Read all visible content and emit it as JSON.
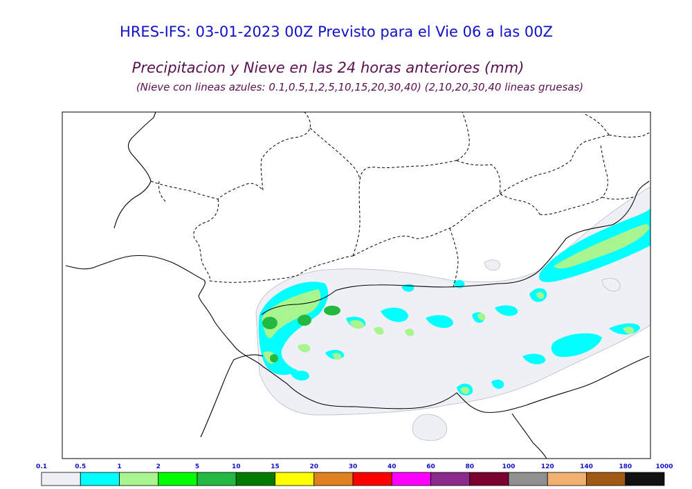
{
  "header": {
    "title": "HRES-IFS: 03-01-2023 00Z Previsto para el Vie 06 a las 00Z",
    "subtitle": "Precipitacion y Nieve en las 24 horas anteriores (mm)",
    "note": "(Nieve con lineas azules: 0.1,0.5,1,2,5,10,15,20,30,40)  (2,10,20,30,40 lineas gruesas)"
  },
  "legend": {
    "ticks": [
      "0.1",
      "0.5",
      "1",
      "2",
      "5",
      "10",
      "15",
      "20",
      "30",
      "40",
      "60",
      "80",
      "100",
      "120",
      "140",
      "180",
      "1000"
    ],
    "colors": [
      "#eef0f6",
      "#00ffff",
      "#a8f58f",
      "#00ff00",
      "#23b840",
      "#007a00",
      "#ffff00",
      "#e08020",
      "#ff0000",
      "#ff00ff",
      "#8a2a8a",
      "#7a0030",
      "#909090",
      "#f0b070",
      "#a05a14",
      "#111111"
    ]
  },
  "map": {
    "precip_colors": {
      "light": "#eef0f6",
      "cyan": "#00ffff",
      "lightgreen": "#a8f58f",
      "green": "#00ff00",
      "darkgreen": "#23b840"
    }
  }
}
